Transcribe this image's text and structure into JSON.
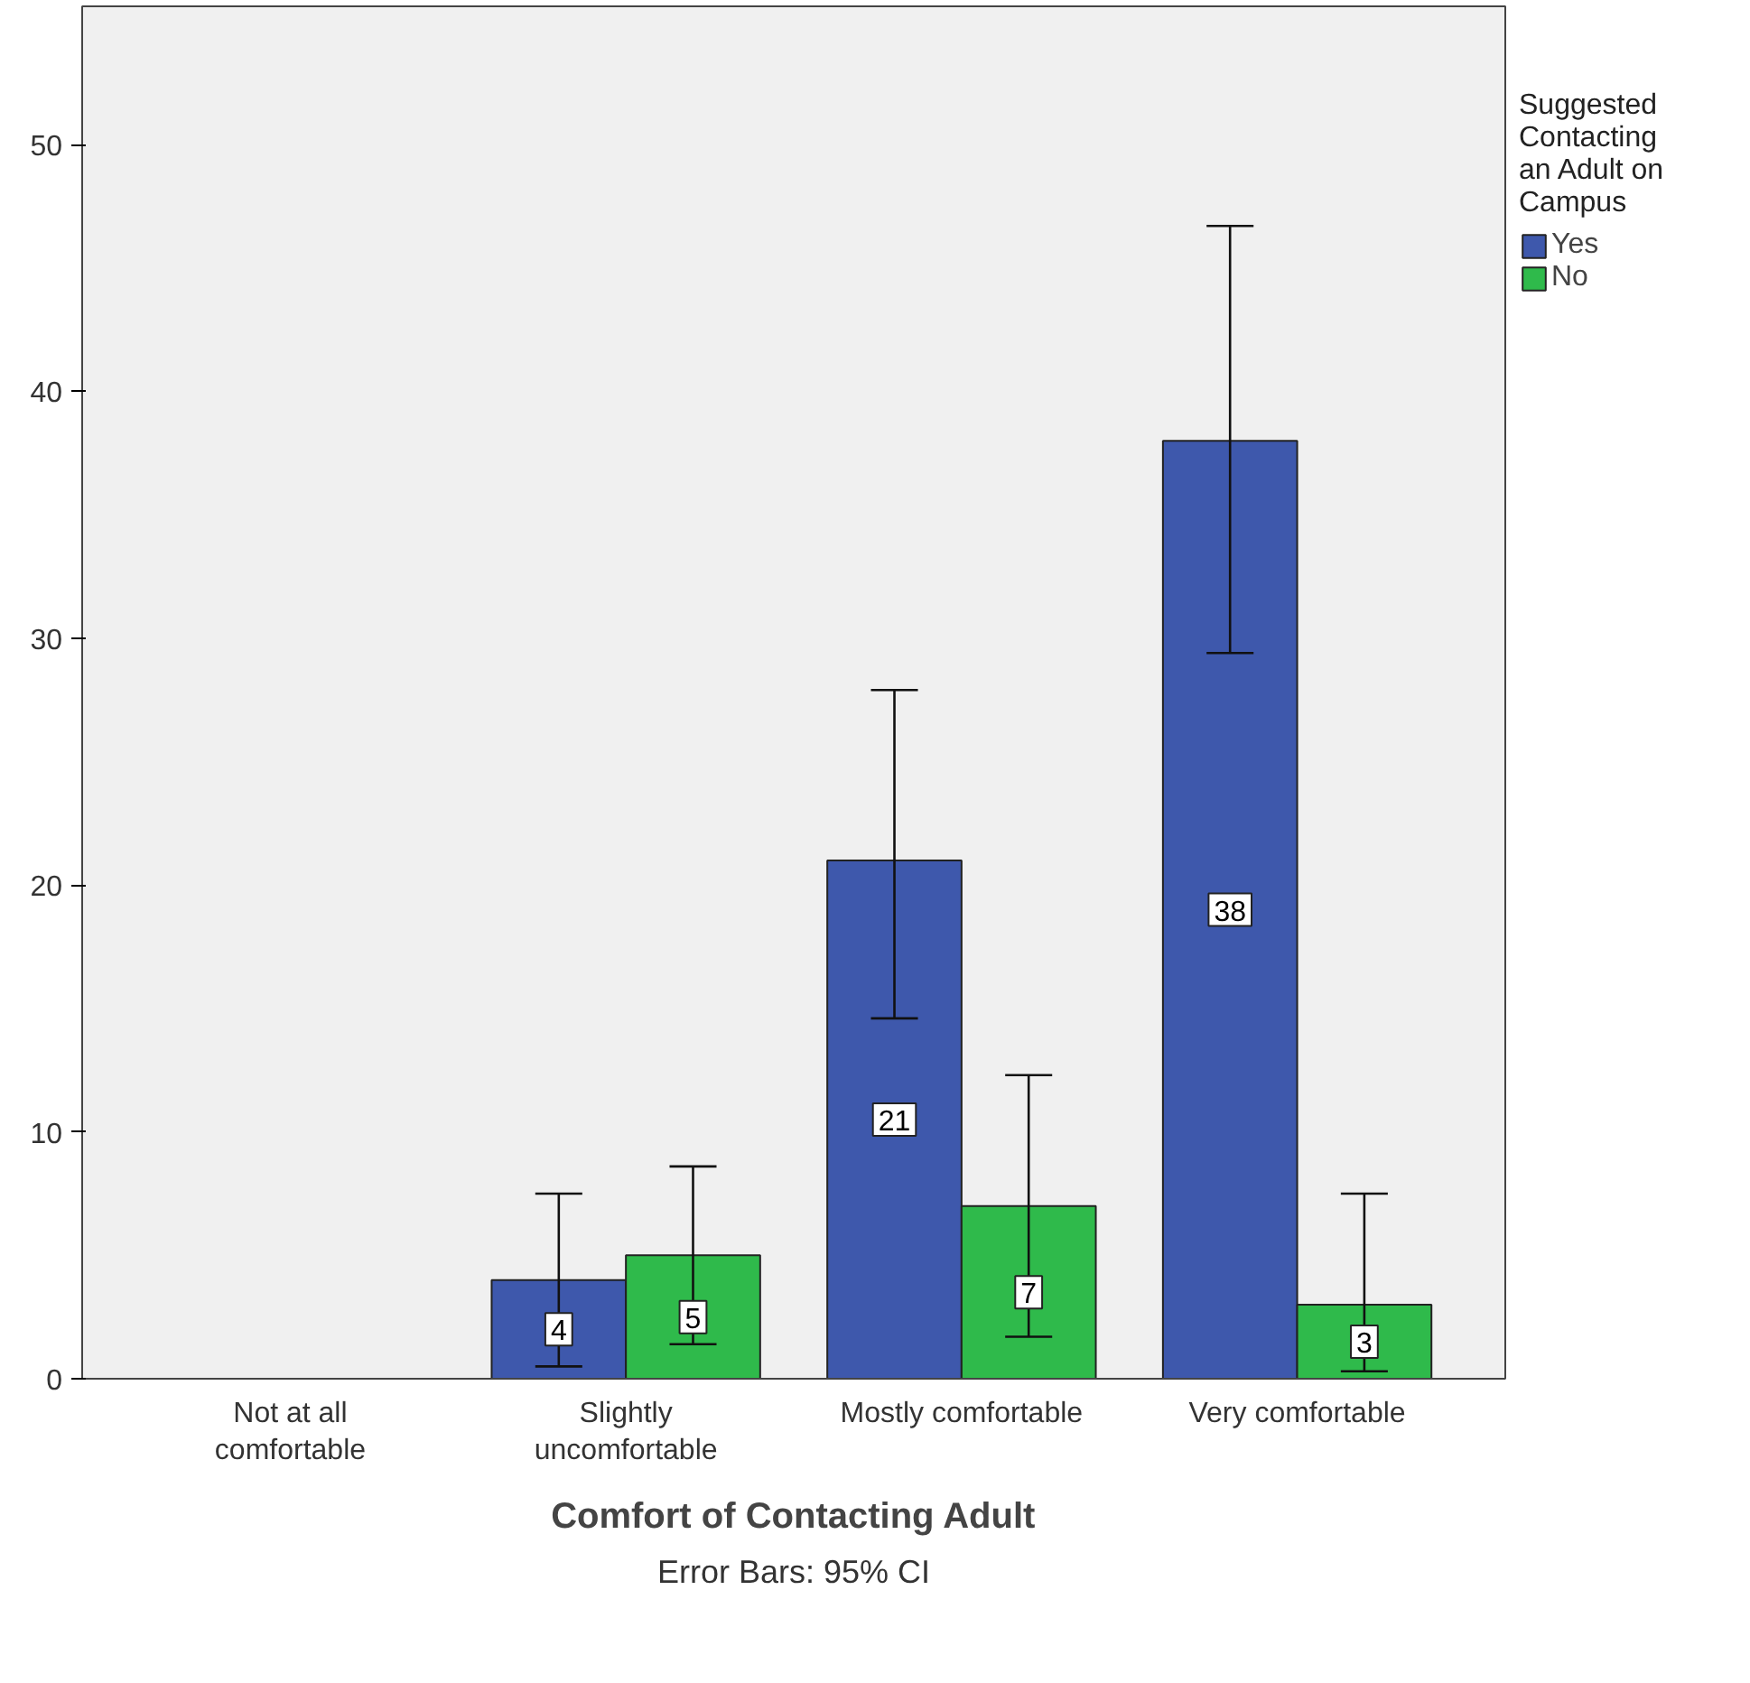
{
  "chart_data": {
    "type": "bar",
    "xlabel": "Comfort of Contacting Adult",
    "legend_title": "Suggested Contacting an Adult on Campus",
    "categories": [
      "Not at all comfortable",
      "Slightly uncomfortable",
      "Mostly comfortable",
      "Very comfortable"
    ],
    "series": [
      {
        "name": "Yes",
        "color": "#3e58ac",
        "values": [
          null,
          4,
          21,
          38
        ],
        "errors": [
          null,
          [
            0.5,
            7.5
          ],
          [
            14.6,
            27.9
          ],
          [
            29.4,
            46.7
          ]
        ]
      },
      {
        "name": "No",
        "color": "#2fba4b",
        "values": [
          null,
          5,
          7,
          3
        ],
        "errors": [
          null,
          [
            1.4,
            8.6
          ],
          [
            1.7,
            12.3
          ],
          [
            0.3,
            7.5
          ]
        ]
      }
    ],
    "ylim": [
      0,
      55.6
    ],
    "yticks": [
      0,
      10,
      20,
      30,
      40,
      50
    ],
    "data_labels": true,
    "grid": false,
    "legend": "top right",
    "annotations": [
      "Error Bars: 95% CI"
    ]
  }
}
